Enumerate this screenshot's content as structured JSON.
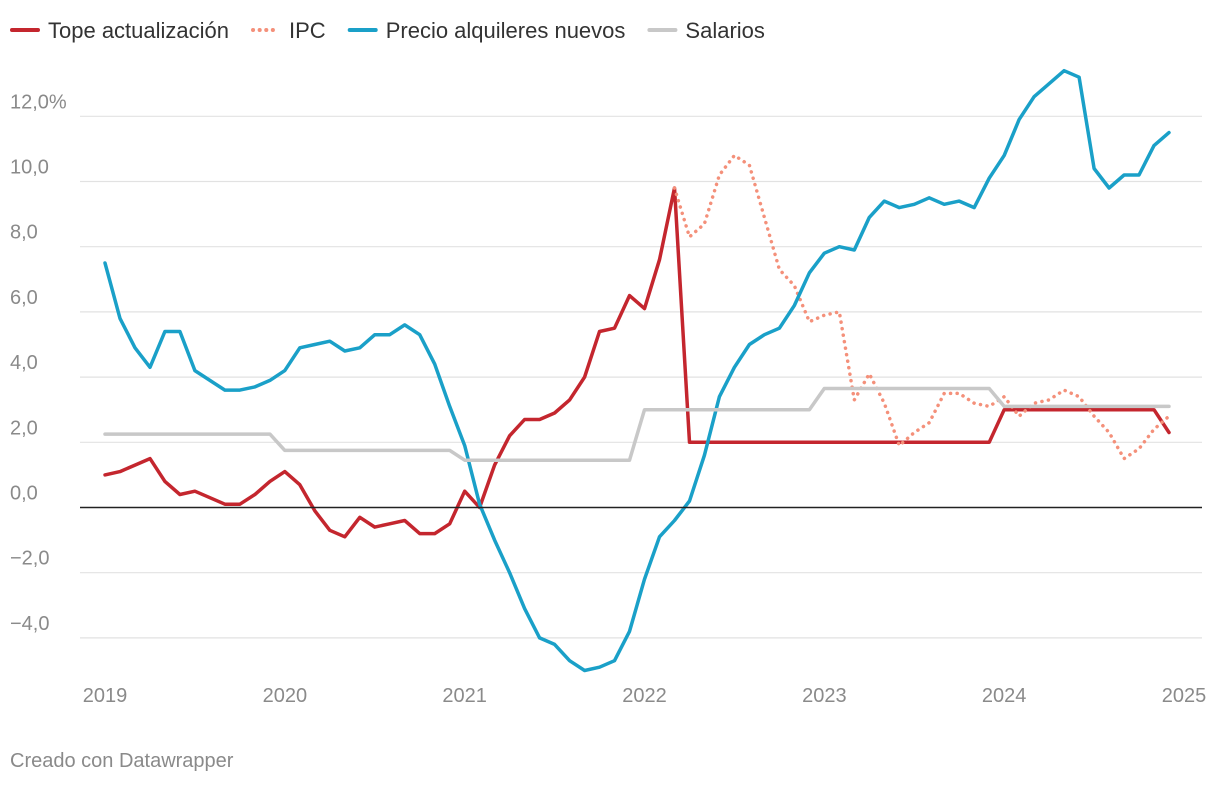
{
  "chart_data": {
    "type": "line",
    "title": "",
    "xlabel": "",
    "ylabel": "",
    "ylim": [
      -5.0,
      13.5
    ],
    "xlim": [
      2019.0,
      2025.0
    ],
    "y_ticks": [
      {
        "value": 12,
        "label": "12,0%"
      },
      {
        "value": 10,
        "label": "10,0"
      },
      {
        "value": 8,
        "label": "8,0"
      },
      {
        "value": 6,
        "label": "6,0"
      },
      {
        "value": 4,
        "label": "4,0"
      },
      {
        "value": 2,
        "label": "2,0"
      },
      {
        "value": 0,
        "label": "0,0"
      },
      {
        "value": -2,
        "label": "−2,0"
      },
      {
        "value": -4,
        "label": "−4,0"
      }
    ],
    "x_ticks": [
      {
        "value": 2019,
        "label": "2019"
      },
      {
        "value": 2020,
        "label": "2020"
      },
      {
        "value": 2021,
        "label": "2021"
      },
      {
        "value": 2022,
        "label": "2022"
      },
      {
        "value": 2023,
        "label": "2023"
      },
      {
        "value": 2024,
        "label": "2024"
      },
      {
        "value": 2025,
        "label": "2025"
      }
    ],
    "legend_position": "top-left",
    "series": [
      {
        "name": "Tope actualización",
        "color": "#c4262e",
        "style": "solid",
        "x": [
          2019.0,
          2019.0833,
          2019.1667,
          2019.25,
          2019.3333,
          2019.4167,
          2019.5,
          2019.5833,
          2019.6667,
          2019.75,
          2019.8333,
          2019.9167,
          2020.0,
          2020.0833,
          2020.1667,
          2020.25,
          2020.3333,
          2020.4167,
          2020.5,
          2020.5833,
          2020.6667,
          2020.75,
          2020.8333,
          2020.9167,
          2021.0,
          2021.0833,
          2021.1667,
          2021.25,
          2021.3333,
          2021.4167,
          2021.5,
          2021.5833,
          2021.6667,
          2021.75,
          2021.8333,
          2021.9167,
          2022.0,
          2022.0833,
          2022.1667,
          2022.25,
          2022.3333,
          2022.4167,
          2022.5,
          2022.5833,
          2022.6667,
          2022.75,
          2022.8333,
          2022.9167,
          2023.0,
          2023.0833,
          2023.1667,
          2023.25,
          2023.3333,
          2023.4167,
          2023.5,
          2023.5833,
          2023.6667,
          2023.75,
          2023.8333,
          2023.9167,
          2024.0,
          2024.0833,
          2024.1667,
          2024.25,
          2024.3333,
          2024.4167,
          2024.5,
          2024.5833,
          2024.6667,
          2024.75,
          2024.8333,
          2024.9167
        ],
        "values": [
          1.0,
          1.1,
          1.3,
          1.5,
          0.8,
          0.4,
          0.5,
          0.3,
          0.1,
          0.1,
          0.4,
          0.8,
          1.1,
          0.7,
          -0.1,
          -0.7,
          -0.9,
          -0.3,
          -0.6,
          -0.5,
          -0.4,
          -0.8,
          -0.8,
          -0.5,
          0.5,
          0.0,
          1.3,
          2.2,
          2.7,
          2.7,
          2.9,
          3.3,
          4.0,
          5.4,
          5.5,
          6.5,
          6.1,
          7.6,
          9.8,
          2.0,
          2.0,
          2.0,
          2.0,
          2.0,
          2.0,
          2.0,
          2.0,
          2.0,
          2.0,
          2.0,
          2.0,
          2.0,
          2.0,
          2.0,
          2.0,
          2.0,
          2.0,
          2.0,
          2.0,
          2.0,
          3.0,
          3.0,
          3.0,
          3.0,
          3.0,
          3.0,
          3.0,
          3.0,
          3.0,
          3.0,
          3.0,
          2.3
        ]
      },
      {
        "name": "IPC",
        "color": "#f4907a",
        "style": "dotted",
        "x": [
          2022.1667,
          2022.25,
          2022.3333,
          2022.4167,
          2022.5,
          2022.5833,
          2022.6667,
          2022.75,
          2022.8333,
          2022.9167,
          2023.0,
          2023.0833,
          2023.1667,
          2023.25,
          2023.3333,
          2023.4167,
          2023.5,
          2023.5833,
          2023.6667,
          2023.75,
          2023.8333,
          2023.9167,
          2024.0,
          2024.0833,
          2024.1667,
          2024.25,
          2024.3333,
          2024.4167,
          2024.5,
          2024.5833,
          2024.6667,
          2024.75,
          2024.8333,
          2024.9167
        ],
        "values": [
          9.8,
          8.3,
          8.7,
          10.2,
          10.8,
          10.5,
          8.9,
          7.3,
          6.8,
          5.7,
          5.9,
          6.0,
          3.3,
          4.1,
          3.2,
          1.9,
          2.3,
          2.6,
          3.5,
          3.5,
          3.2,
          3.1,
          3.4,
          2.8,
          3.2,
          3.3,
          3.6,
          3.4,
          2.8,
          2.3,
          1.5,
          1.8,
          2.4,
          2.8
        ]
      },
      {
        "name": "Precio alquileres nuevos",
        "color": "#1aa0c8",
        "style": "solid",
        "x": [
          2019.0,
          2019.0833,
          2019.1667,
          2019.25,
          2019.3333,
          2019.4167,
          2019.5,
          2019.5833,
          2019.6667,
          2019.75,
          2019.8333,
          2019.9167,
          2020.0,
          2020.0833,
          2020.1667,
          2020.25,
          2020.3333,
          2020.4167,
          2020.5,
          2020.5833,
          2020.6667,
          2020.75,
          2020.8333,
          2020.9167,
          2021.0,
          2021.0833,
          2021.1667,
          2021.25,
          2021.3333,
          2021.4167,
          2021.5,
          2021.5833,
          2021.6667,
          2021.75,
          2021.8333,
          2021.9167,
          2022.0,
          2022.0833,
          2022.1667,
          2022.25,
          2022.3333,
          2022.4167,
          2022.5,
          2022.5833,
          2022.6667,
          2022.75,
          2022.8333,
          2022.9167,
          2023.0,
          2023.0833,
          2023.1667,
          2023.25,
          2023.3333,
          2023.4167,
          2023.5,
          2023.5833,
          2023.6667,
          2023.75,
          2023.8333,
          2023.9167,
          2024.0,
          2024.0833,
          2024.1667,
          2024.25,
          2024.3333,
          2024.4167,
          2024.5,
          2024.5833,
          2024.6667,
          2024.75,
          2024.8333,
          2024.9167
        ],
        "values": [
          7.5,
          5.8,
          4.9,
          4.3,
          5.4,
          5.4,
          4.2,
          3.9,
          3.6,
          3.6,
          3.7,
          3.9,
          4.2,
          4.9,
          5.0,
          5.1,
          4.8,
          4.9,
          5.3,
          5.3,
          5.6,
          5.3,
          4.4,
          3.1,
          1.9,
          0.1,
          -1.0,
          -2.0,
          -3.1,
          -4.0,
          -4.2,
          -4.7,
          -5.0,
          -4.9,
          -4.7,
          -3.8,
          -2.2,
          -0.9,
          -0.4,
          0.2,
          1.6,
          3.4,
          4.3,
          5.0,
          5.3,
          5.5,
          6.2,
          7.2,
          7.8,
          8.0,
          7.9,
          8.9,
          9.4,
          9.2,
          9.3,
          9.5,
          9.3,
          9.4,
          9.2,
          10.1,
          10.8,
          11.9,
          12.6,
          13.0,
          13.4,
          13.2,
          10.4,
          9.8,
          10.2,
          10.2,
          11.1,
          11.5
        ]
      },
      {
        "name": "Salarios",
        "color": "#c8c8c8",
        "style": "solid",
        "x": [
          2019.0,
          2019.9167,
          2020.0,
          2020.9167,
          2021.0,
          2021.9167,
          2022.0,
          2022.9167,
          2023.0,
          2023.9167,
          2024.0,
          2024.9167
        ],
        "values": [
          2.25,
          2.25,
          1.75,
          1.75,
          1.45,
          1.45,
          3.0,
          3.0,
          3.65,
          3.65,
          3.1,
          3.1
        ]
      }
    ]
  },
  "footer": {
    "credit": "Creado con Datawrapper"
  }
}
